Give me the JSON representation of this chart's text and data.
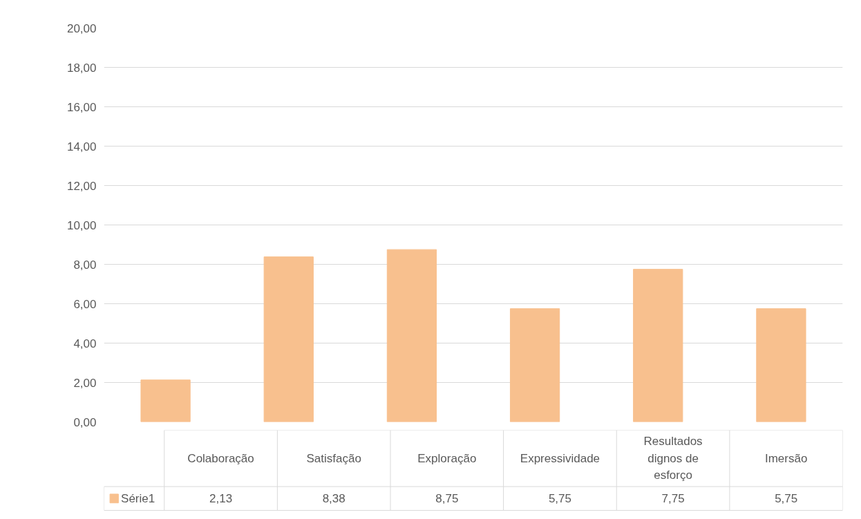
{
  "chart_data": {
    "type": "bar",
    "categories": [
      "Colaboração",
      "Satisfação",
      "Exploração",
      "Expressividade",
      "Resultados dignos de esforço",
      "Imersão"
    ],
    "series": [
      {
        "name": "Série1",
        "color": "#f8c08e",
        "values": [
          2.13,
          8.38,
          8.75,
          5.75,
          7.75,
          5.75
        ],
        "value_labels": [
          "2,13",
          "8,38",
          "8,75",
          "5,75",
          "7,75",
          "5,75"
        ]
      }
    ],
    "ylim": [
      0,
      20
    ],
    "yticks": [
      {
        "value": 0,
        "label": "0,00"
      },
      {
        "value": 2,
        "label": "2,00"
      },
      {
        "value": 4,
        "label": "4,00"
      },
      {
        "value": 6,
        "label": "6,00"
      },
      {
        "value": 8,
        "label": "8,00"
      },
      {
        "value": 10,
        "label": "10,00"
      },
      {
        "value": 12,
        "label": "12,00"
      },
      {
        "value": 14,
        "label": "14,00"
      },
      {
        "value": 16,
        "label": "16,00"
      },
      {
        "value": 18,
        "label": "18,00"
      },
      {
        "value": 20,
        "label": "20,00"
      }
    ],
    "grid": "y",
    "legend": "bottom"
  }
}
